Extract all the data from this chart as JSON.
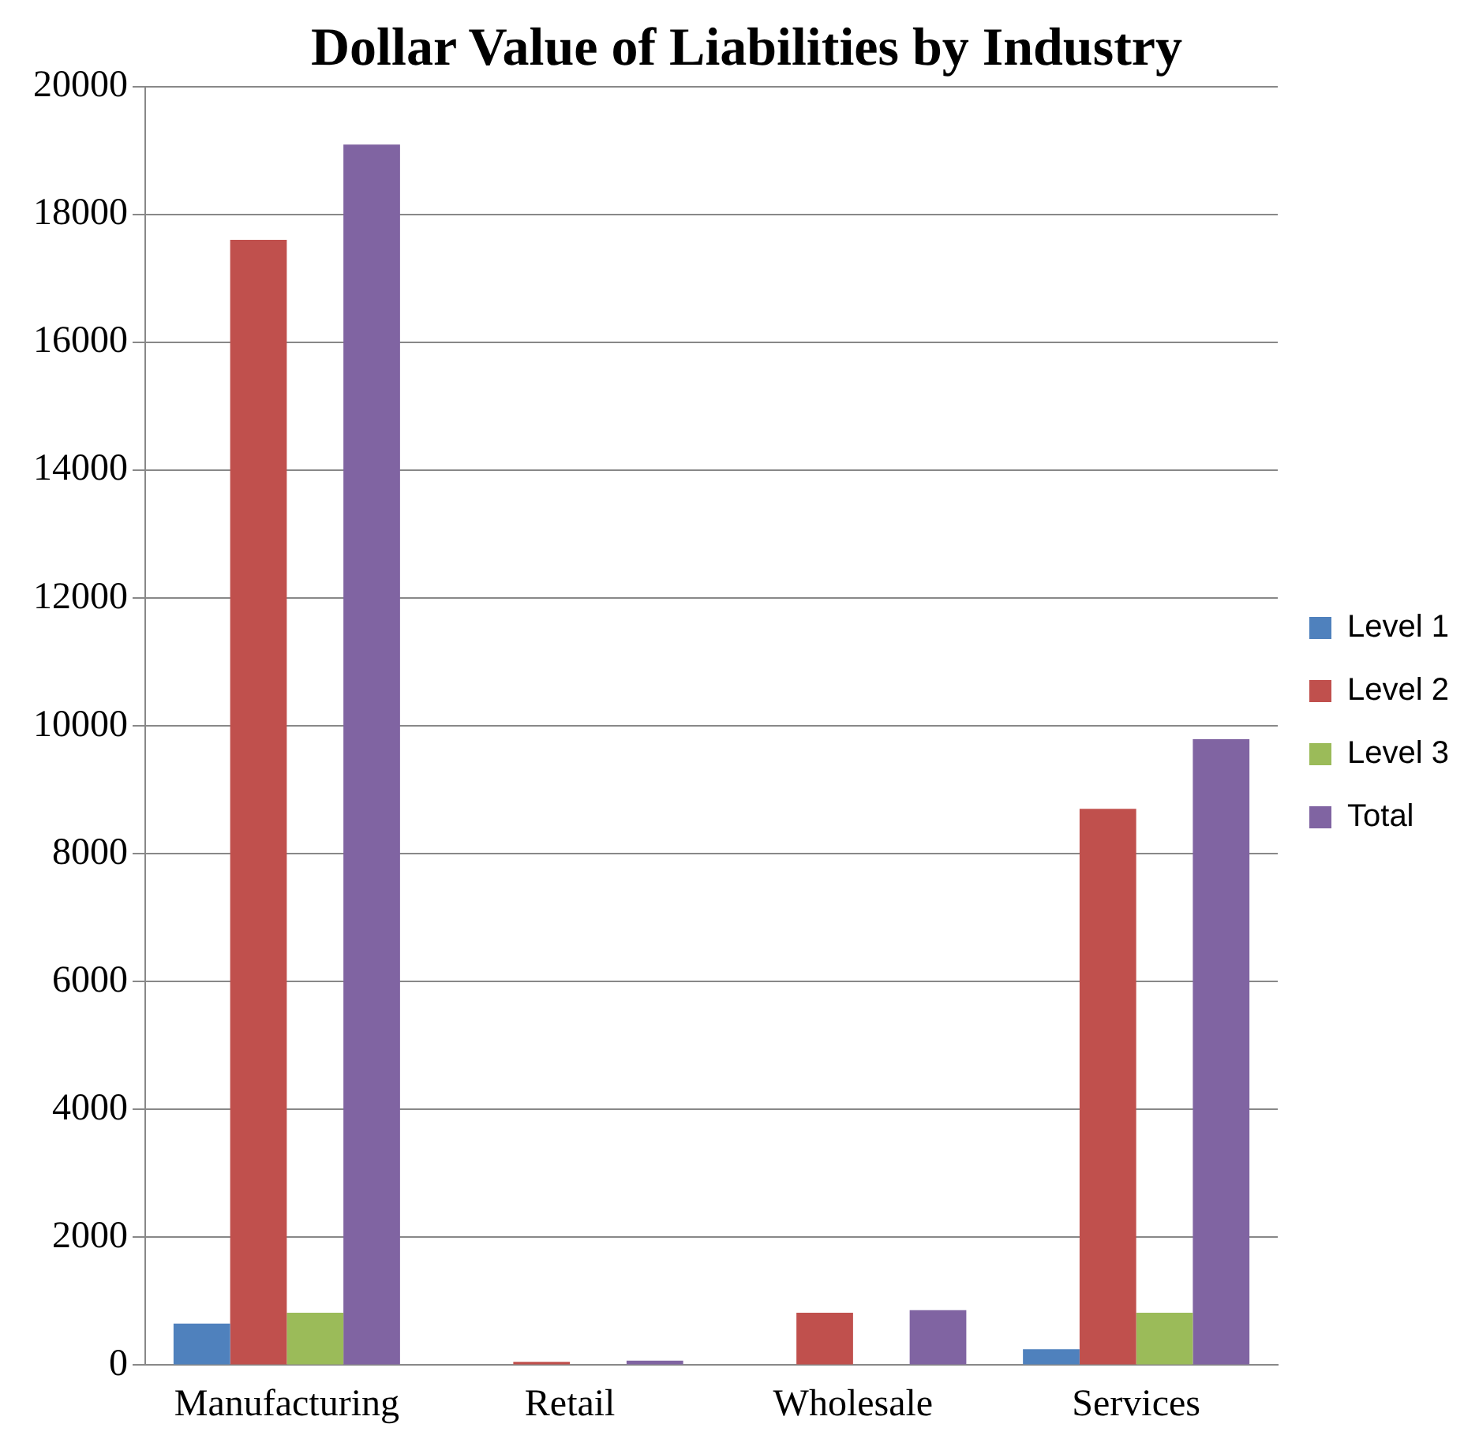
{
  "chart_data": {
    "type": "bar",
    "title": "Dollar Value of Liabilities by Industry",
    "categories": [
      "Manufacturing",
      "Retail",
      "Wholesale",
      "Services"
    ],
    "series": [
      {
        "name": "Level 1",
        "color": "#4f81bd",
        "values": [
          650,
          0,
          null,
          250
        ]
      },
      {
        "name": "Level 2",
        "color": "#c0504d",
        "values": [
          17600,
          50,
          820,
          8700
        ]
      },
      {
        "name": "Level 3",
        "color": "#9bbb59",
        "values": [
          820,
          null,
          0,
          820
        ]
      },
      {
        "name": "Total",
        "color": "#8064a2",
        "values": [
          19090,
          70,
          860,
          9790
        ]
      }
    ],
    "ylim": [
      0,
      20000
    ],
    "yticks": [
      0,
      2000,
      4000,
      6000,
      8000,
      10000,
      12000,
      14000,
      16000,
      18000,
      20000
    ],
    "grid": "y",
    "legend": "right"
  }
}
